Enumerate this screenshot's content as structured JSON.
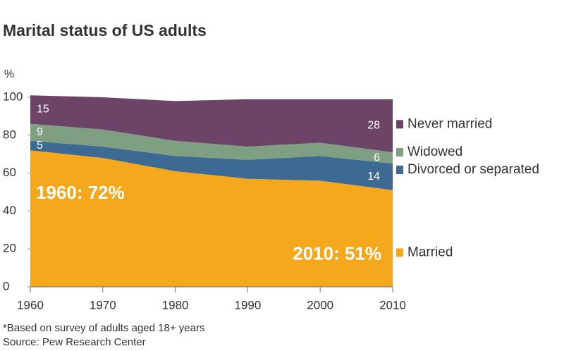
{
  "chart_data": {
    "type": "stacked-area",
    "title": "Marital status of US adults",
    "y_label": "%",
    "x": [
      1960,
      1970,
      1980,
      1990,
      2000,
      2010
    ],
    "series": [
      {
        "name": "Married",
        "color": "#f5a81c",
        "values": [
          72,
          68,
          61,
          57,
          56,
          51
        ],
        "value_labels": [
          "1960: 72%",
          null,
          null,
          null,
          null,
          "2010: 51%"
        ]
      },
      {
        "name": "Divorced or separated",
        "color": "#3d6a93",
        "values": [
          5,
          6,
          8,
          10,
          13,
          14
        ]
      },
      {
        "name": "Widowed",
        "color": "#7f9f82",
        "values": [
          9,
          9,
          8,
          7,
          7,
          6
        ]
      },
      {
        "name": "Never married",
        "color": "#6c4467",
        "values": [
          15,
          17,
          21,
          25,
          23,
          28
        ]
      }
    ],
    "xlim": [
      1960,
      2010
    ],
    "xticks": [
      1960,
      1970,
      1980,
      1990,
      2000,
      2010
    ],
    "ylim": [
      0,
      100
    ],
    "yticks": [
      0,
      20,
      40,
      60,
      80,
      100
    ],
    "footnotes": [
      "*Based on survey of adults aged 18+ years",
      "Source: Pew Research Center"
    ]
  }
}
